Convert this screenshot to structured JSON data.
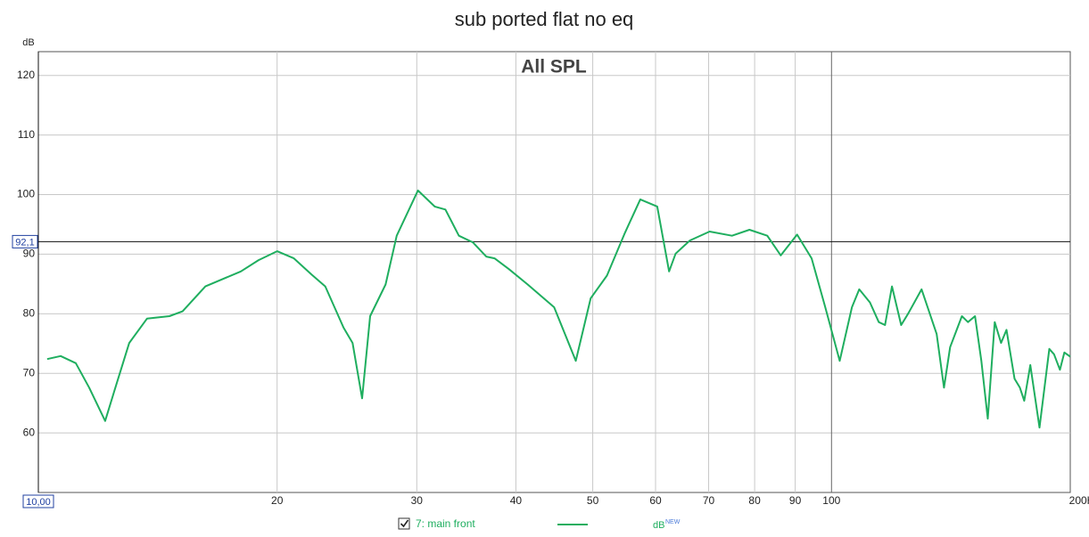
{
  "chart_data": {
    "type": "line",
    "title": "sub ported flat no eq",
    "plot_title": "All SPL",
    "y_label": "dB",
    "log_x": true,
    "grid": true,
    "xlim": [
      10,
      200
    ],
    "ylim": [
      50,
      124
    ],
    "xticks": [
      20,
      30,
      40,
      50,
      60,
      70,
      80,
      90,
      100,
      {
        "value": 200,
        "label": "200Hz"
      }
    ],
    "yticks": [
      60,
      70,
      80,
      90,
      100,
      110,
      120
    ],
    "x_cursor": {
      "value": 10,
      "label": "10,00"
    },
    "y_cursor": {
      "value": 92.1,
      "label": "92,1"
    },
    "legend": {
      "unit": "dB",
      "unit_tag": "NEW"
    },
    "x": [
      10.26,
      10.67,
      11.15,
      11.59,
      12.14,
      12.46,
      13.02,
      13.71,
      14.63,
      15.2,
      16.24,
      18.0,
      18.95,
      20.0,
      21.0,
      22.1,
      23.0,
      24.25,
      24.9,
      25.6,
      26.2,
      27.4,
      28.3,
      30.1,
      31.6,
      32.6,
      33.9,
      35.3,
      36.7,
      37.6,
      39.2,
      41.4,
      44.7,
      47.6,
      49.7,
      52.1,
      54.9,
      57.4,
      60.3,
      62.4,
      63.6,
      66.3,
      70.2,
      74.9,
      78.8,
      83.0,
      86.3,
      90.5,
      94.4,
      98.2,
      102.4,
      106.1,
      108.4,
      111.8,
      114.7,
      116.8,
      119.2,
      122.4,
      125.0,
      129.9,
      135.7,
      138.6,
      141.1,
      146.0,
      148.6,
      151.7,
      154.5,
      157.4,
      160.6,
      163.6,
      166.2,
      170.1,
      172.8,
      175.0,
      178.1,
      182.9,
      188.2,
      190.8,
      194.1,
      196.6,
      200.0
    ],
    "series": [
      {
        "name": "7: main front",
        "color": "#1fae5f",
        "values": [
          72.4,
          72.9,
          71.7,
          67.6,
          62.0,
          66.9,
          75.1,
          79.2,
          79.6,
          80.4,
          84.6,
          87.1,
          89.0,
          90.5,
          89.3,
          86.6,
          84.6,
          77.7,
          75.1,
          65.8,
          79.6,
          84.9,
          93.1,
          100.7,
          98.0,
          97.5,
          93.1,
          92.0,
          89.6,
          89.3,
          87.5,
          84.9,
          81.1,
          72.1,
          82.6,
          86.4,
          93.6,
          99.2,
          98.0,
          87.1,
          90.1,
          92.3,
          93.8,
          93.1,
          94.1,
          93.1,
          89.8,
          93.3,
          89.3,
          81.1,
          72.1,
          81.1,
          84.1,
          81.9,
          78.6,
          78.1,
          84.6,
          78.1,
          80.1,
          84.1,
          76.6,
          67.6,
          74.4,
          79.6,
          78.6,
          79.6,
          72.1,
          62.4,
          78.6,
          75.1,
          77.3,
          69.1,
          67.6,
          65.4,
          71.4,
          60.9,
          74.1,
          73.2,
          70.6,
          73.5,
          72.8
        ]
      }
    ]
  }
}
